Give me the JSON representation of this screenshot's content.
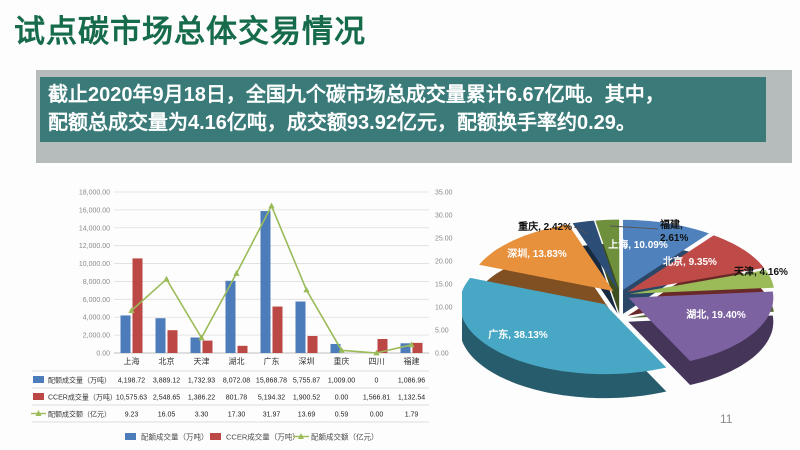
{
  "slide": {
    "title": "试点碳市场总体交易情况",
    "page_number": "11",
    "colors": {
      "title_green": "#156B4A",
      "box_teal": "#3A7B7A",
      "box_shadow_gray": "#B6BCBC"
    }
  },
  "summary_box": {
    "line1": "截止2020年9月18日，全国九个碳市场总成交量累计6.67亿吨。其中，",
    "line2": "配额总成交量为4.16亿吨，成交额93.92亿元，配额换手率约0.29。"
  },
  "chart_data": [
    {
      "type": "bar",
      "subtype": "bar-line-combo",
      "title": "",
      "categories": [
        "上海",
        "北京",
        "天津",
        "湖北",
        "广东",
        "深圳",
        "重庆",
        "四川",
        "福建"
      ],
      "series": [
        {
          "name": "配额成交量（万吨）",
          "kind": "bar",
          "axis": "left",
          "color": "#4D7CBB",
          "values": [
            4198.72,
            3889.12,
            1732.93,
            8072.08,
            15868.78,
            5755.87,
            1009.0,
            0,
            1086.96
          ],
          "display": [
            "4,198.72",
            "3,889.12",
            "1,732.93",
            "8,072.08",
            "15,868.78",
            "5,755.87",
            "1,009.00",
            "0",
            "1,086.96"
          ]
        },
        {
          "name": "CCER成交量（万吨）",
          "kind": "bar",
          "axis": "left",
          "color": "#BC4845",
          "values": [
            10575.63,
            2548.65,
            1386.22,
            801.78,
            5194.32,
            1900.52,
            0.0,
            1566.81,
            1132.54
          ],
          "display": [
            "10,575.63",
            "2,548.65",
            "1,386.22",
            "801.78",
            "5,194.32",
            "1,900.52",
            "0.00",
            "1,566.81",
            "1,132.54"
          ]
        },
        {
          "name": "配额成交额（亿元）",
          "kind": "line",
          "axis": "right",
          "color": "#9BBB59",
          "values": [
            9.23,
            16.05,
            3.3,
            17.3,
            31.97,
            13.69,
            0.59,
            0.0,
            1.79
          ],
          "display": [
            "9.23",
            "16.05",
            "3.30",
            "17.30",
            "31.97",
            "13.69",
            "0.59",
            "0.00",
            "1.79"
          ]
        }
      ],
      "left_axis": {
        "min": 0,
        "max": 18000,
        "step": 2000,
        "labels": [
          "18,000.00",
          "16,000.00",
          "14,000.00",
          "12,000.00",
          "10,000.00",
          "8,000.00",
          "6,000.00",
          "4,000.00",
          "2,000.00",
          "0.00"
        ]
      },
      "right_axis": {
        "min": 0,
        "max": 35,
        "step": 5,
        "labels": [
          "35.00",
          "30.00",
          "25.00",
          "20.00",
          "15.00",
          "10.00",
          "5.00",
          "0.00"
        ]
      },
      "grid": true,
      "data_table": true,
      "legend_position": "bottom"
    },
    {
      "type": "pie",
      "style": "3d-exploded",
      "title": "",
      "slices": [
        {
          "name": "上海",
          "pct": 10.09,
          "label": "上海, 10.09%",
          "pct_display": "10.09%",
          "color": "#4F81BD",
          "label_placement": "inside"
        },
        {
          "name": "北京",
          "pct": 9.35,
          "label": "北京, 9.35%",
          "pct_display": "9.35%",
          "color": "#BE4B48",
          "label_placement": "inside"
        },
        {
          "name": "天津",
          "pct": 4.16,
          "label": "天津, 4.16%",
          "pct_display": "4.16%",
          "color": "#9BBB59",
          "label_placement": "outside-right"
        },
        {
          "name": "湖北",
          "pct": 19.4,
          "label": "湖北, 19.40%",
          "pct_display": "19.40%",
          "color": "#7D62A1",
          "label_placement": "inside"
        },
        {
          "name": "广东",
          "pct": 38.13,
          "label": "广东, 38.13%",
          "pct_display": "38.13%",
          "color": "#47A7C4",
          "label_placement": "inside"
        },
        {
          "name": "深圳",
          "pct": 13.83,
          "label": "深圳, 13.83%",
          "pct_display": "13.83%",
          "color": "#E8913D",
          "label_placement": "inside"
        },
        {
          "name": "重庆",
          "pct": 2.42,
          "label": "重庆, 2.42%",
          "pct_display": "2.42%",
          "color": "#2C4D75",
          "label_placement": "outside-left"
        },
        {
          "name": "福建",
          "pct": 2.61,
          "label": "福建, 2.61%",
          "pct_display": "2.61%",
          "color": "#6E8F3C",
          "label_placement": "outside-right-wrapped"
        }
      ]
    }
  ]
}
